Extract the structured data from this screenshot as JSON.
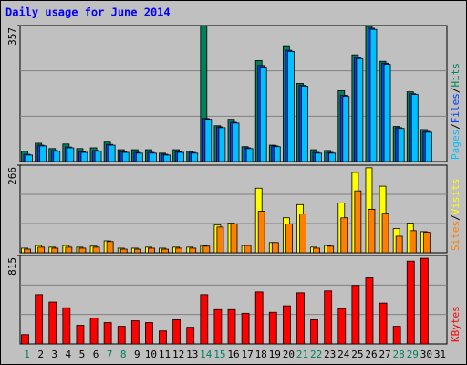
{
  "chart_data": [
    {
      "type": "bar",
      "title": "Daily usage for June 2014",
      "legend_separator": "/",
      "ylim": [
        0,
        357
      ],
      "yticks": [
        357
      ],
      "series": [
        {
          "name": "Hits",
          "color": "#00805c",
          "values": [
            27,
            48,
            34,
            46,
            34,
            36,
            51,
            31,
            31,
            31,
            22,
            31,
            27,
            357,
            94,
            111,
            39,
            265,
            43,
            304,
            205,
            31,
            29,
            186,
            280,
            355,
            263,
            92,
            183,
            84,
            0
          ]
        },
        {
          "name": "Files",
          "color": "#0040ff",
          "values": [
            19,
            43,
            29,
            38,
            26,
            29,
            45,
            26,
            24,
            24,
            19,
            26,
            24,
            113,
            91,
            103,
            36,
            252,
            41,
            292,
            200,
            24,
            24,
            174,
            273,
            350,
            258,
            89,
            178,
            79,
            0
          ]
        },
        {
          "name": "Pages",
          "color": "#00c0ff",
          "values": [
            17,
            41,
            27,
            36,
            24,
            27,
            43,
            24,
            22,
            22,
            17,
            24,
            22,
            111,
            89,
            101,
            34,
            248,
            39,
            289,
            198,
            22,
            22,
            171,
            270,
            347,
            255,
            87,
            176,
            77,
            0
          ]
        }
      ]
    },
    {
      "type": "bar",
      "legend_separator": "/",
      "ylim": [
        0,
        266
      ],
      "yticks": [
        266
      ],
      "series": [
        {
          "name": "Visits",
          "color": "#ffff00",
          "values": [
            14,
            22,
            17,
            22,
            17,
            20,
            36,
            14,
            14,
            17,
            14,
            17,
            17,
            22,
            84,
            90,
            22,
            196,
            31,
            106,
            146,
            17,
            22,
            151,
            244,
            258,
            202,
            73,
            90,
            64,
            0
          ]
        },
        {
          "name": "Sites",
          "color": "#ff8000",
          "values": [
            11,
            17,
            14,
            17,
            14,
            17,
            34,
            11,
            11,
            14,
            11,
            14,
            14,
            20,
            78,
            87,
            22,
            126,
            31,
            87,
            118,
            14,
            20,
            106,
            188,
            132,
            120,
            50,
            67,
            62,
            0
          ]
        }
      ]
    },
    {
      "type": "bar",
      "ylim": [
        0,
        815
      ],
      "yticks": [
        815
      ],
      "categories": [
        1,
        2,
        3,
        4,
        5,
        6,
        7,
        8,
        9,
        10,
        11,
        12,
        13,
        14,
        15,
        16,
        17,
        18,
        19,
        20,
        21,
        22,
        23,
        24,
        25,
        26,
        27,
        28,
        29,
        30,
        31
      ],
      "category_colors": [
        "#00805c",
        "#000",
        "#000",
        "#000",
        "#000",
        "#000",
        "#00805c",
        "#00805c",
        "#000",
        "#000",
        "#000",
        "#000",
        "#000",
        "#00805c",
        "#00805c",
        "#000",
        "#000",
        "#000",
        "#000",
        "#000",
        "#00805c",
        "#00805c",
        "#000",
        "#000",
        "#000",
        "#000",
        "#000",
        "#00805c",
        "#00805c",
        "#000",
        "#000"
      ],
      "series": [
        {
          "name": "KBytes",
          "color": "#ff0000",
          "values": [
            86,
            455,
            386,
            334,
            172,
            240,
            197,
            163,
            214,
            197,
            120,
            223,
            154,
            455,
            317,
            317,
            283,
            480,
            292,
            352,
            472,
            223,
            489,
            326,
            540,
            609,
            377,
            163,
            763,
            789,
            0
          ]
        }
      ]
    }
  ]
}
